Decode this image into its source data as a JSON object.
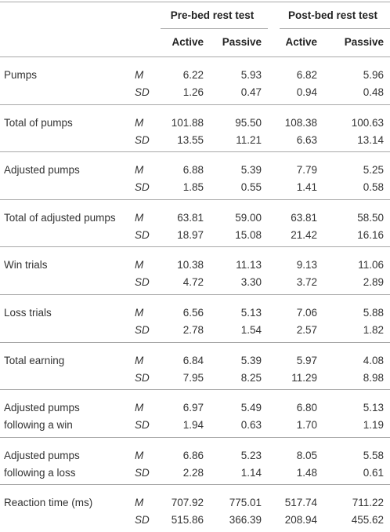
{
  "table": {
    "group_headers": [
      "Pre-bed rest test",
      "Post-bed rest test"
    ],
    "sub_headers": [
      "Active",
      "Passive",
      "Active",
      "Passive"
    ],
    "rows": [
      {
        "label_lines": [
          "Pumps"
        ],
        "stats": [
          {
            "stat": "M",
            "values": [
              "6.22",
              "5.93",
              "6.82",
              "5.96"
            ]
          },
          {
            "stat": "SD",
            "values": [
              "1.26",
              "0.47",
              "0.94",
              "0.48"
            ]
          }
        ]
      },
      {
        "label_lines": [
          "Total of pumps"
        ],
        "stats": [
          {
            "stat": "M",
            "values": [
              "101.88",
              "95.50",
              "108.38",
              "100.63"
            ]
          },
          {
            "stat": "SD",
            "values": [
              "13.55",
              "11.21",
              "6.63",
              "13.14"
            ]
          }
        ]
      },
      {
        "label_lines": [
          "Adjusted pumps"
        ],
        "stats": [
          {
            "stat": "M",
            "values": [
              "6.88",
              "5.39",
              "7.79",
              "5.25"
            ]
          },
          {
            "stat": "SD",
            "values": [
              "1.85",
              "0.55",
              "1.41",
              "0.58"
            ]
          }
        ]
      },
      {
        "label_lines": [
          "Total of adjusted pumps"
        ],
        "stats": [
          {
            "stat": "M",
            "values": [
              "63.81",
              "59.00",
              "63.81",
              "58.50"
            ]
          },
          {
            "stat": "SD",
            "values": [
              "18.97",
              "15.08",
              "21.42",
              "16.16"
            ]
          }
        ]
      },
      {
        "label_lines": [
          "Win trials"
        ],
        "stats": [
          {
            "stat": "M",
            "values": [
              "10.38",
              "11.13",
              "9.13",
              "11.06"
            ]
          },
          {
            "stat": "SD",
            "values": [
              "4.72",
              "3.30",
              "3.72",
              "2.89"
            ]
          }
        ]
      },
      {
        "label_lines": [
          "Loss trials"
        ],
        "stats": [
          {
            "stat": "M",
            "values": [
              "6.56",
              "5.13",
              "7.06",
              "5.88"
            ]
          },
          {
            "stat": "SD",
            "values": [
              "2.78",
              "1.54",
              "2.57",
              "1.82"
            ]
          }
        ]
      },
      {
        "label_lines": [
          "Total earning"
        ],
        "stats": [
          {
            "stat": "M",
            "values": [
              "6.84",
              "5.39",
              "5.97",
              "4.08"
            ]
          },
          {
            "stat": "SD",
            "values": [
              "7.95",
              "8.25",
              "11.29",
              "8.98"
            ]
          }
        ]
      },
      {
        "label_lines": [
          "Adjusted pumps",
          "following a win"
        ],
        "stats": [
          {
            "stat": "M",
            "values": [
              "6.97",
              "5.49",
              "6.80",
              "5.13"
            ]
          },
          {
            "stat": "SD",
            "values": [
              "1.94",
              "0.63",
              "1.70",
              "1.19"
            ]
          }
        ]
      },
      {
        "label_lines": [
          "Adjusted pumps",
          "following a loss"
        ],
        "stats": [
          {
            "stat": "M",
            "values": [
              "6.86",
              "5.23",
              "8.05",
              "5.58"
            ]
          },
          {
            "stat": "SD",
            "values": [
              "2.28",
              "1.14",
              "1.48",
              "0.61"
            ]
          }
        ]
      },
      {
        "label_lines": [
          "Reaction time (ms)"
        ],
        "stats": [
          {
            "stat": "M",
            "values": [
              "707.92",
              "775.01",
              "517.74",
              "711.22"
            ]
          },
          {
            "stat": "SD",
            "values": [
              "515.86",
              "366.39",
              "208.94",
              "455.62"
            ]
          }
        ]
      }
    ]
  }
}
